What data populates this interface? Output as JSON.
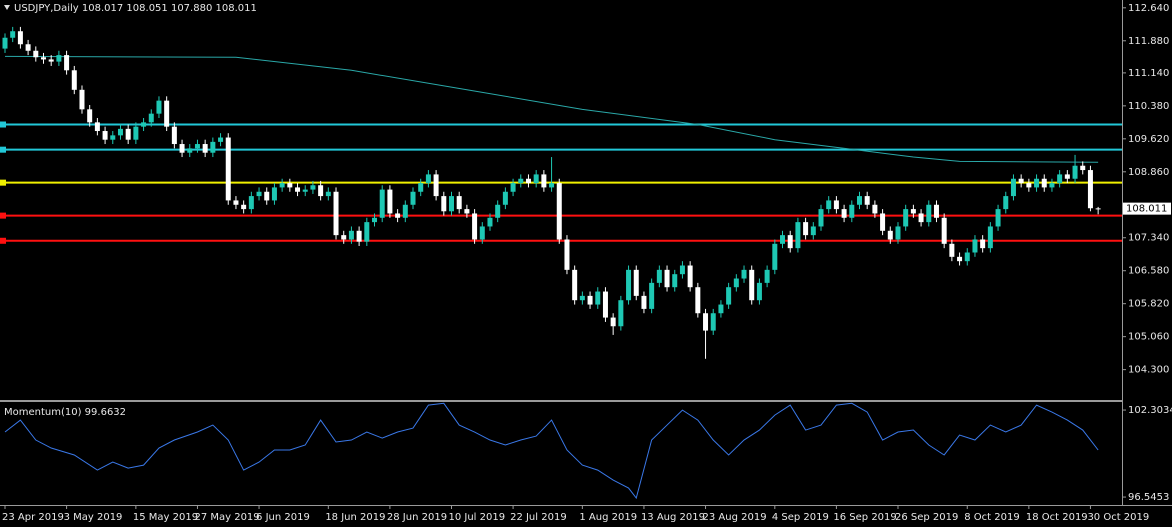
{
  "chart_data": [
    {
      "type": "candlestick",
      "title": "USDJPY,Daily  108.017 108.051 107.880 108.011",
      "up_color": "#1ec8b4",
      "down_color": "#ffffff",
      "xlim": [
        -0.65,
        145.1
      ],
      "xticks": [
        {
          "value": 0,
          "label": "23 Apr 2019"
        },
        {
          "value": 8,
          "label": "3 May 2019"
        },
        {
          "value": 17,
          "label": "15 May 2019"
        },
        {
          "value": 25,
          "label": "27 May 2019"
        },
        {
          "value": 33,
          "label": "6 Jun 2019"
        },
        {
          "value": 42,
          "label": "18 Jun 2019"
        },
        {
          "value": 50,
          "label": "28 Jun 2019"
        },
        {
          "value": 58,
          "label": "10 Jul 2019"
        },
        {
          "value": 66,
          "label": "22 Jul 2019"
        },
        {
          "value": 75,
          "label": "1 Aug 2019"
        },
        {
          "value": 83,
          "label": "13 Aug 2019"
        },
        {
          "value": 91,
          "label": "23 Aug 2019"
        },
        {
          "value": 100,
          "label": "4 Sep 2019"
        },
        {
          "value": 108,
          "label": "16 Sep 2019"
        },
        {
          "value": 116,
          "label": "26 Sep 2019"
        },
        {
          "value": 125,
          "label": "8 Oct 2019"
        },
        {
          "value": 133,
          "label": "18 Oct 2019"
        },
        {
          "value": 141,
          "label": "30 Oct 2019"
        }
      ],
      "ylim": [
        103.6,
        112.82
      ],
      "yticks": [
        {
          "value": 112.64,
          "label": "112.640"
        },
        {
          "value": 111.88,
          "label": "111.880"
        },
        {
          "value": 111.14,
          "label": "111.140"
        },
        {
          "value": 110.38,
          "label": "110.380"
        },
        {
          "value": 109.62,
          "label": "109.620"
        },
        {
          "value": 108.86,
          "label": "108.860"
        },
        {
          "value": 107.34,
          "label": "107.340"
        },
        {
          "value": 106.58,
          "label": "106.580"
        },
        {
          "value": 105.82,
          "label": "105.820"
        },
        {
          "value": 105.06,
          "label": "105.060"
        },
        {
          "value": 104.3,
          "label": "104.300"
        }
      ],
      "open": [
        111.7,
        111.95,
        112.1,
        111.8,
        111.65,
        111.5,
        111.45,
        111.4,
        111.55,
        111.2,
        110.75,
        110.3,
        110,
        109.8,
        109.6,
        109.7,
        109.85,
        109.6,
        109.9,
        110,
        110.2,
        110.5,
        109.9,
        109.5,
        109.3,
        109.4,
        109.5,
        109.3,
        109.55,
        109.65,
        108.2,
        108.1,
        108,
        108.3,
        108.4,
        108.2,
        108.5,
        108.6,
        108.5,
        108.4,
        108.45,
        108.55,
        108.3,
        108.4,
        107.4,
        107.3,
        107.5,
        107.25,
        107.7,
        107.8,
        108.45,
        107.9,
        107.8,
        108.1,
        108.4,
        108.6,
        108.8,
        108.3,
        107.95,
        108.3,
        108,
        107.9,
        107.3,
        107.6,
        107.8,
        108.1,
        108.4,
        108.6,
        108.7,
        108.6,
        108.8,
        108.5,
        108.6,
        107.3,
        106.6,
        105.9,
        106,
        105.8,
        106.1,
        105.5,
        105.3,
        105.9,
        106.6,
        106,
        105.7,
        106.3,
        106.6,
        106.2,
        106.5,
        106.7,
        106.2,
        105.6,
        105.2,
        105.6,
        105.8,
        106.2,
        106.4,
        106.6,
        105.9,
        106.3,
        106.6,
        107.2,
        107.4,
        107.1,
        107.7,
        107.4,
        107.6,
        108,
        108.2,
        108,
        107.8,
        108.1,
        108.3,
        108.1,
        107.9,
        107.5,
        107.3,
        107.6,
        108,
        107.9,
        107.7,
        108.1,
        107.8,
        107.2,
        106.9,
        106.8,
        107,
        107.3,
        107.1,
        107.6,
        108,
        108.3,
        108.7,
        108.6,
        108.5,
        108.7,
        108.5,
        108.6,
        108.8,
        108.7,
        109,
        108.9,
        108.017
      ],
      "high": [
        112.05,
        112.2,
        112.2,
        111.9,
        111.75,
        111.6,
        111.55,
        111.65,
        111.65,
        111.3,
        110.85,
        110.4,
        110.1,
        109.9,
        109.8,
        109.95,
        109.95,
        110,
        110.1,
        110.3,
        110.6,
        110.6,
        110,
        109.6,
        109.5,
        109.6,
        109.6,
        109.65,
        109.75,
        109.75,
        108.3,
        108.2,
        108.4,
        108.5,
        108.5,
        108.6,
        108.7,
        108.7,
        108.6,
        108.55,
        108.65,
        108.65,
        108.5,
        108.5,
        107.5,
        107.6,
        107.6,
        107.8,
        107.9,
        108.55,
        108.55,
        108,
        108.2,
        108.5,
        108.7,
        108.9,
        108.9,
        108.4,
        108.4,
        108.4,
        108.1,
        108,
        107.7,
        107.9,
        108.2,
        108.5,
        108.7,
        108.8,
        108.8,
        108.9,
        108.9,
        109.2,
        108.7,
        107.4,
        106.7,
        106.1,
        106.1,
        106.2,
        106.2,
        105.6,
        106,
        106.7,
        106.7,
        106.1,
        106.4,
        106.7,
        106.7,
        106.6,
        106.8,
        106.8,
        106.3,
        105.7,
        105.7,
        105.9,
        106.3,
        106.5,
        106.7,
        106.7,
        106.4,
        106.7,
        107.3,
        107.5,
        107.5,
        107.8,
        107.8,
        107.7,
        108.1,
        108.3,
        108.3,
        108.1,
        108.2,
        108.4,
        108.4,
        108.2,
        108,
        107.6,
        107.7,
        108.1,
        108.1,
        108,
        108.2,
        108.2,
        107.9,
        107.3,
        107,
        107.1,
        107.4,
        107.4,
        107.7,
        108.1,
        108.4,
        108.8,
        108.8,
        108.7,
        108.8,
        108.8,
        108.7,
        108.9,
        108.9,
        109.25,
        109.1,
        109,
        108.051
      ],
      "low": [
        111.6,
        111.85,
        111.7,
        111.55,
        111.4,
        111.35,
        111.3,
        111.3,
        111.1,
        110.65,
        110.2,
        109.9,
        109.7,
        109.5,
        109.5,
        109.6,
        109.5,
        109.5,
        109.8,
        109.9,
        110.1,
        109.8,
        109.4,
        109.2,
        109.2,
        109.3,
        109.2,
        109.2,
        109.45,
        108.1,
        108,
        107.9,
        107.9,
        108.2,
        108.1,
        108.1,
        108.4,
        108.4,
        108.3,
        108.3,
        108.35,
        108.2,
        108.2,
        107.3,
        107.2,
        107.2,
        107.15,
        107.15,
        107.6,
        107.7,
        107.8,
        107.7,
        107.7,
        108,
        108.3,
        108.5,
        108.2,
        107.85,
        107.85,
        107.9,
        107.8,
        107.2,
        107.2,
        107.5,
        107.7,
        108,
        108.3,
        108.5,
        108.5,
        108.5,
        108.4,
        108.4,
        107.2,
        106.5,
        105.8,
        105.8,
        105.7,
        105.7,
        105.4,
        105.1,
        105.2,
        105.8,
        105.9,
        105.6,
        105.6,
        106.2,
        106.1,
        106.1,
        106.4,
        106.1,
        105.5,
        104.55,
        105.1,
        105.5,
        105.7,
        106.1,
        106.3,
        105.8,
        105.8,
        106.2,
        106.5,
        107.1,
        107,
        107,
        107.3,
        107.3,
        107.5,
        107.9,
        107.9,
        107.7,
        107.7,
        108,
        108,
        107.8,
        107.4,
        107.2,
        107.2,
        107.5,
        107.8,
        107.6,
        107.6,
        107.7,
        107.1,
        106.8,
        106.7,
        106.7,
        106.9,
        107,
        107,
        107.5,
        107.9,
        108.2,
        108.5,
        108.4,
        108.4,
        108.4,
        108.4,
        108.5,
        108.6,
        108.6,
        108.8,
        107.95,
        107.88
      ],
      "close": [
        111.95,
        112.1,
        111.8,
        111.65,
        111.5,
        111.45,
        111.4,
        111.55,
        111.2,
        110.75,
        110.3,
        110,
        109.8,
        109.6,
        109.7,
        109.85,
        109.6,
        109.9,
        110,
        110.2,
        110.5,
        109.9,
        109.5,
        109.3,
        109.4,
        109.5,
        109.3,
        109.55,
        109.65,
        108.2,
        108.1,
        108,
        108.3,
        108.4,
        108.2,
        108.5,
        108.6,
        108.5,
        108.4,
        108.45,
        108.55,
        108.3,
        108.4,
        107.4,
        107.3,
        107.5,
        107.25,
        107.7,
        107.8,
        108.45,
        107.9,
        107.8,
        108.1,
        108.4,
        108.6,
        108.8,
        108.3,
        107.95,
        108.3,
        108,
        107.9,
        107.3,
        107.6,
        107.8,
        108.1,
        108.4,
        108.6,
        108.7,
        108.6,
        108.8,
        108.5,
        108.6,
        107.3,
        106.6,
        105.9,
        106,
        105.8,
        106.1,
        105.5,
        105.3,
        105.9,
        106.6,
        106,
        105.7,
        106.3,
        106.6,
        106.2,
        106.5,
        106.7,
        106.2,
        105.6,
        105.2,
        105.6,
        105.8,
        106.2,
        106.4,
        106.6,
        105.9,
        106.3,
        106.6,
        107.2,
        107.4,
        107.1,
        107.7,
        107.4,
        107.6,
        108,
        108.2,
        108,
        107.8,
        108.1,
        108.3,
        108.1,
        107.9,
        107.5,
        107.3,
        107.6,
        108,
        107.9,
        107.7,
        108.1,
        107.8,
        107.2,
        106.9,
        106.8,
        107,
        107.3,
        107.1,
        107.6,
        108,
        108.3,
        108.7,
        108.6,
        108.5,
        108.7,
        108.5,
        108.6,
        108.8,
        108.7,
        109,
        108.9,
        108.02,
        108.011
      ],
      "moving_average": {
        "color": "#2aa8a8",
        "x": [
          0,
          30,
          45,
          60,
          75,
          90,
          100,
          110,
          118,
          124,
          142
        ],
        "values": [
          111.52,
          111.5,
          111.2,
          110.75,
          110.3,
          109.95,
          109.6,
          109.38,
          109.2,
          109.1,
          109.08
        ]
      },
      "levels": [
        {
          "value": 109.95,
          "color": "#22c8d8"
        },
        {
          "value": 109.37,
          "color": "#22c8d8"
        },
        {
          "value": 108.61,
          "color": "#f0f000"
        },
        {
          "value": 107.85,
          "color": "#ff1010"
        },
        {
          "value": 107.27,
          "color": "#ff1010"
        }
      ]
    },
    {
      "type": "line",
      "title": "Momentum(10) 99.6632",
      "color": "#3a78e8",
      "xlim": [
        -0.65,
        145.1
      ],
      "ylim": [
        96.02,
        102.77
      ],
      "yticks": [
        102.3034,
        96.5453
      ],
      "x": [
        0,
        2,
        4,
        6,
        9,
        12,
        14,
        16,
        18,
        20,
        22,
        25,
        27,
        29,
        31,
        33,
        35,
        37,
        39,
        41,
        43,
        45,
        47,
        49,
        51,
        53,
        55,
        57,
        59,
        61,
        63,
        65,
        67,
        69,
        71,
        73,
        75,
        77,
        79,
        81,
        82,
        84,
        86,
        88,
        90,
        92,
        94,
        96,
        98,
        100,
        102,
        104,
        106,
        108,
        110,
        112,
        114,
        116,
        118,
        120,
        122,
        124,
        126,
        128,
        130,
        132,
        134,
        136,
        138,
        140,
        142
      ],
      "values": [
        100.85,
        101.64,
        100.32,
        99.79,
        99.33,
        98.33,
        98.86,
        98.46,
        98.66,
        99.79,
        100.32,
        100.85,
        101.31,
        100.32,
        98.33,
        98.86,
        99.66,
        99.66,
        99.99,
        101.64,
        100.19,
        100.32,
        100.85,
        100.45,
        100.85,
        101.11,
        102.63,
        102.75,
        101.31,
        100.85,
        100.32,
        99.99,
        100.32,
        100.58,
        101.64,
        99.66,
        98.66,
        98.33,
        97.67,
        97.14,
        96.48,
        100.32,
        101.31,
        102.3,
        101.64,
        100.32,
        99.33,
        100.32,
        100.98,
        101.97,
        102.63,
        100.98,
        101.31,
        102.63,
        102.75,
        102.17,
        100.32,
        100.85,
        100.98,
        99.99,
        99.33,
        100.65,
        100.32,
        101.31,
        100.85,
        101.31,
        102.63,
        102.17,
        101.64,
        100.98,
        99.66
      ]
    }
  ]
}
